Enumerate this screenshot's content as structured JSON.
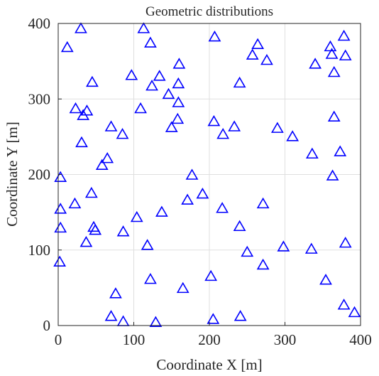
{
  "chart_data": {
    "type": "scatter",
    "title": "Geometric distributions",
    "xlabel": "Coordinate X [m]",
    "ylabel": "Coordinate Y [m]",
    "xlim": [
      0,
      400
    ],
    "ylim": [
      0,
      400
    ],
    "xticks": [
      "0",
      "100",
      "200",
      "300",
      "400"
    ],
    "yticks": [
      "0",
      "100",
      "200",
      "300",
      "400"
    ],
    "grid": true,
    "marker": "triangle",
    "marker_color": "#0000ff",
    "x": [
      30,
      113,
      12,
      207,
      122,
      378,
      360,
      362,
      380,
      264,
      257,
      276,
      160,
      365,
      340,
      97,
      45,
      124,
      134,
      159,
      240,
      146,
      23,
      38,
      33,
      109,
      159,
      158,
      206,
      365,
      70,
      150,
      233,
      218,
      290,
      310,
      85,
      31,
      65,
      58,
      336,
      373,
      177,
      3,
      363,
      191,
      171,
      44,
      22,
      217,
      3,
      271,
      104,
      47,
      49,
      3,
      137,
      86,
      37,
      240,
      118,
      250,
      298,
      335,
      380,
      2,
      271,
      202,
      354,
      122,
      76,
      165,
      70,
      378,
      241,
      205,
      86,
      129,
      392
    ],
    "y": [
      394,
      394,
      369,
      383,
      375,
      384,
      370,
      360,
      358,
      373,
      359,
      352,
      347,
      336,
      347,
      332,
      323,
      318,
      331,
      321,
      322,
      307,
      288,
      285,
      279,
      288,
      296,
      274,
      271,
      277,
      264,
      263,
      264,
      254,
      262,
      251,
      254,
      243,
      222,
      213,
      228,
      231,
      200,
      197,
      199,
      175,
      167,
      176,
      162,
      156,
      155,
      162,
      144,
      131,
      127,
      130,
      151,
      125,
      111,
      132,
      107,
      98,
      105,
      102,
      110,
      85,
      81,
      66,
      61,
      62,
      43,
      50,
      13,
      28,
      13,
      9,
      6,
      5,
      18
    ]
  }
}
